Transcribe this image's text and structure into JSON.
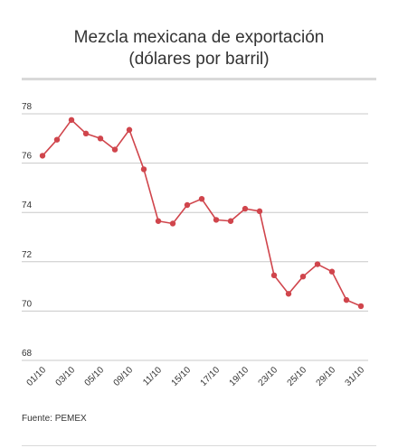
{
  "title_line1": "Mezcla mexicana de exportación",
  "title_line2": "(dólares por barril)",
  "source": "Fuente: PEMEX",
  "chart_data": {
    "type": "line",
    "title": "Mezcla mexicana de exportación (dólares por barril)",
    "xlabel": "",
    "ylabel": "",
    "ylim": [
      68,
      78
    ],
    "yticks": [
      68,
      70,
      72,
      74,
      76,
      78
    ],
    "grid": true,
    "x_tick_labels": [
      "01/10",
      "03/10",
      "05/10",
      "09/10",
      "11/10",
      "15/10",
      "17/10",
      "19/10",
      "23/10",
      "25/10",
      "29/10",
      "31/10"
    ],
    "x": [
      "01/10",
      "02/10",
      "03/10",
      "04/10",
      "05/10",
      "08/10",
      "09/10",
      "10/10",
      "11/10",
      "12/10",
      "15/10",
      "16/10",
      "17/10",
      "18/10",
      "19/10",
      "22/10",
      "23/10",
      "24/10",
      "25/10",
      "26/10",
      "29/10",
      "30/10",
      "31/10"
    ],
    "series": [
      {
        "name": "",
        "color": "#d0454c",
        "values": [
          76.3,
          76.95,
          77.75,
          77.2,
          77.0,
          76.55,
          77.35,
          75.75,
          73.65,
          73.55,
          74.3,
          74.55,
          73.7,
          73.65,
          74.15,
          74.05,
          71.45,
          70.7,
          71.4,
          71.9,
          71.6,
          70.45,
          70.2
        ]
      }
    ]
  }
}
